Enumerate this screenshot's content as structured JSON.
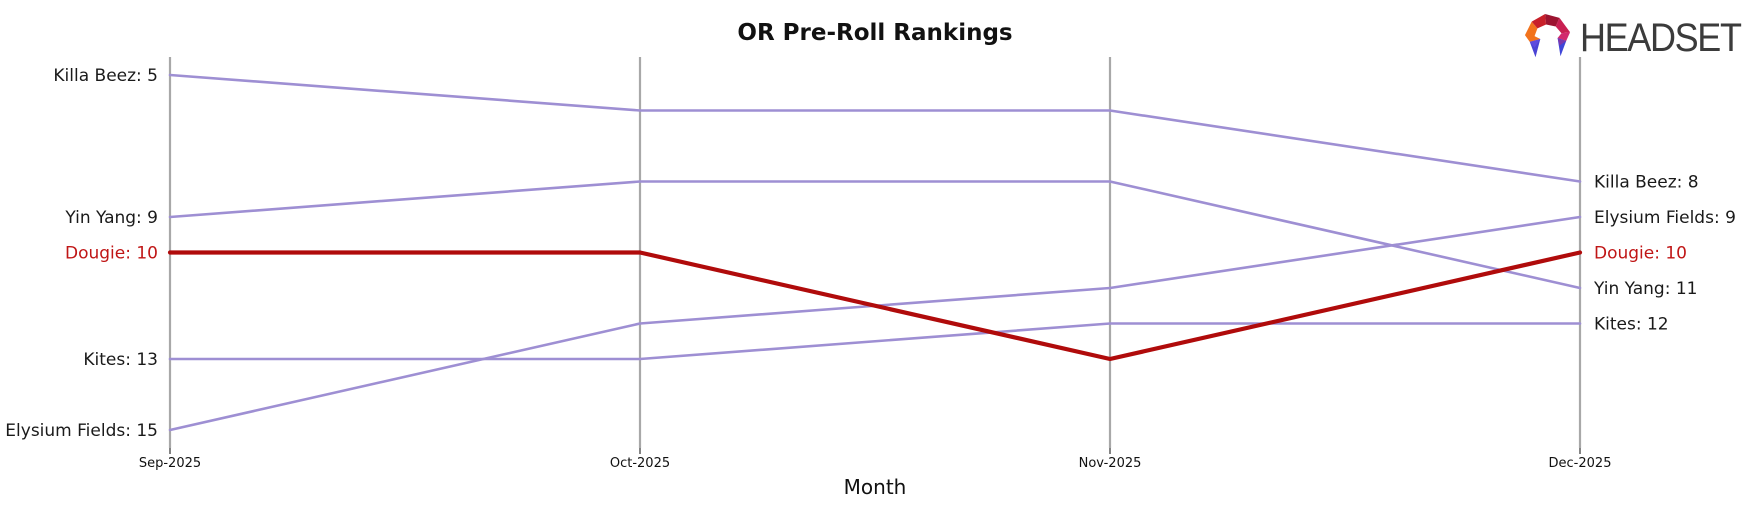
{
  "brand": {
    "logo_text": "HEADSET",
    "logo_icon": "headset-gem-icon"
  },
  "chart_data": {
    "type": "line",
    "variant": "bump-ranking",
    "title": "OR Pre-Roll Rankings",
    "xlabel": "Month",
    "x_tick_labels": [
      "Sep-2025",
      "Oct-2025",
      "Nov-2025",
      "Dec-2025"
    ],
    "y_axis": {
      "range": [
        4.5,
        15.5
      ],
      "inverted": true,
      "axis_hidden": true
    },
    "grid": "vertical axis line at each month, no horizontal grid",
    "legend": "none (direct labels at line ends)",
    "series": [
      {
        "name": "Killa Beez",
        "values": [
          5,
          6,
          6,
          8
        ],
        "highlight": false
      },
      {
        "name": "Yin Yang",
        "values": [
          9,
          8,
          8,
          11
        ],
        "highlight": false
      },
      {
        "name": "Dougie",
        "values": [
          10,
          10,
          13,
          10
        ],
        "highlight": true
      },
      {
        "name": "Kites",
        "values": [
          13,
          13,
          12,
          12
        ],
        "highlight": false
      },
      {
        "name": "Elysium Fields",
        "values": [
          15,
          12,
          11,
          9
        ],
        "highlight": false
      }
    ],
    "left_labels": [
      {
        "text": "Killa Beez: 5",
        "rank": 5,
        "highlight": false
      },
      {
        "text": "Yin Yang: 9",
        "rank": 9,
        "highlight": false
      },
      {
        "text": "Dougie: 10",
        "rank": 10,
        "highlight": true
      },
      {
        "text": "Kites: 13",
        "rank": 13,
        "highlight": false
      },
      {
        "text": "Elysium Fields: 15",
        "rank": 15,
        "highlight": false
      }
    ],
    "right_labels": [
      {
        "text": "Killa Beez: 8",
        "rank": 8,
        "highlight": false
      },
      {
        "text": "Elysium Fields: 9",
        "rank": 9,
        "highlight": false
      },
      {
        "text": "Dougie: 10",
        "rank": 10,
        "highlight": true
      },
      {
        "text": "Yin Yang: 11",
        "rank": 11,
        "highlight": false
      },
      {
        "text": "Kites: 12",
        "rank": 12,
        "highlight": false
      }
    ],
    "colors": {
      "line": "#9e8fd3",
      "highlight_line": "#b00b0b",
      "axis": "#a8a8a8",
      "tick": "#333333",
      "label": "#1a1a1a",
      "highlight_label": "#c01616",
      "title": "#111111"
    }
  }
}
